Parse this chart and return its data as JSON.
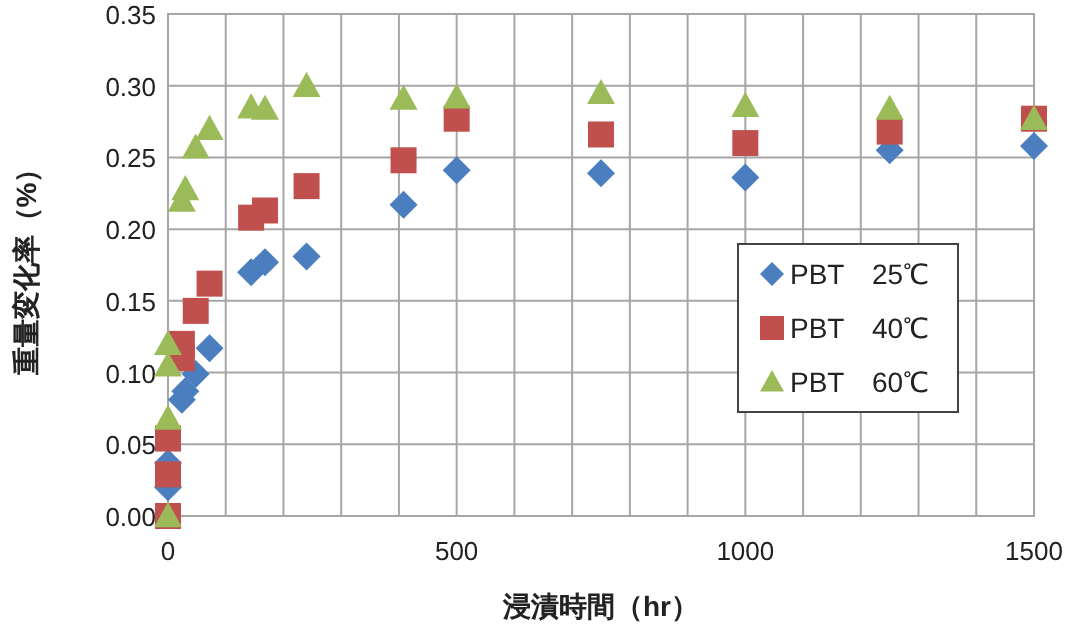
{
  "chart_data": {
    "type": "scatter",
    "xlabel": "浸漬時間（hr）",
    "ylabel": "重量変化率（%）",
    "xlim": [
      0,
      1500
    ],
    "ylim": [
      0,
      0.35
    ],
    "xticks": [
      0,
      {
        "value": 100,
        "label": null
      },
      {
        "value": 200,
        "label": null
      },
      {
        "value": 300,
        "label": null
      },
      {
        "value": 400,
        "label": null
      },
      500,
      {
        "value": 600,
        "label": null
      },
      {
        "value": 700,
        "label": null
      },
      {
        "value": 800,
        "label": null
      },
      {
        "value": 900,
        "label": null
      },
      1000,
      {
        "value": 1100,
        "label": null
      },
      {
        "value": 1200,
        "label": null
      },
      {
        "value": 1300,
        "label": null
      },
      {
        "value": 1400,
        "label": null
      },
      1500
    ],
    "yticks": [
      {
        "value": 0,
        "label": "0.00"
      },
      {
        "value": 0.05,
        "label": "0.05"
      },
      {
        "value": 0.1,
        "label": "0.10"
      },
      {
        "value": 0.15,
        "label": "0.15"
      },
      {
        "value": 0.2,
        "label": "0.20"
      },
      {
        "value": 0.25,
        "label": "0.25"
      },
      {
        "value": 0.3,
        "label": "0.30"
      },
      {
        "value": 0.35,
        "label": "0.35"
      }
    ],
    "grid": true,
    "legend": "right",
    "series": [
      {
        "name": "PBT　25℃",
        "color": "#4a7ebf",
        "marker": "diamond",
        "x": [
          0,
          0,
          24,
          30,
          48,
          72,
          144,
          168,
          240,
          408,
          500,
          750,
          1000,
          1250,
          1500
        ],
        "values": [
          0.02,
          0.037,
          0.081,
          0.087,
          0.099,
          0.117,
          0.17,
          0.177,
          0.181,
          0.217,
          0.241,
          0.239,
          0.236,
          0.255,
          0.258
        ]
      },
      {
        "name": "PBT　40℃",
        "color": "#c0504d",
        "marker": "square",
        "x": [
          0,
          0,
          0,
          24,
          24,
          48,
          72,
          144,
          168,
          240,
          408,
          500,
          750,
          1000,
          1250,
          1500
        ],
        "values": [
          0.0,
          0.029,
          0.054,
          0.11,
          0.12,
          0.143,
          0.162,
          0.208,
          0.213,
          0.23,
          0.248,
          0.277,
          0.266,
          0.26,
          0.268,
          0.277
        ]
      },
      {
        "name": "PBT　60℃",
        "color": "#9bbb59",
        "marker": "triangle",
        "x": [
          0,
          0,
          0,
          0,
          24,
          30,
          48,
          72,
          144,
          168,
          240,
          408,
          500,
          750,
          1000,
          1250,
          1500
        ],
        "values": [
          0.0,
          0.068,
          0.105,
          0.12,
          0.22,
          0.228,
          0.257,
          0.27,
          0.285,
          0.284,
          0.3,
          0.291,
          0.292,
          0.295,
          0.286,
          0.284,
          0.277
        ]
      }
    ]
  }
}
